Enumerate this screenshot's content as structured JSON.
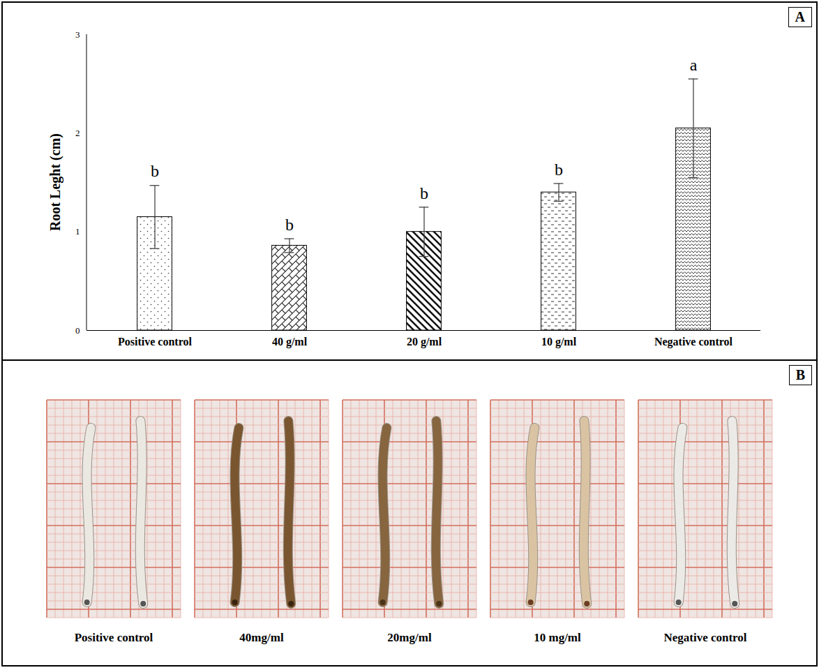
{
  "chart_data": {
    "type": "bar",
    "panel": "A",
    "y_label": "Root Leght (cm)",
    "categories": [
      "Positive control",
      "40 g/ml",
      "20 g/ml",
      "10 g/ml",
      "Negative control"
    ],
    "values": [
      1.15,
      0.86,
      1.0,
      1.4,
      2.05
    ],
    "errors": [
      0.32,
      0.07,
      0.25,
      0.09,
      0.5
    ],
    "significance_letters": [
      "b",
      "b",
      "b",
      "b",
      "a"
    ],
    "color": "#ffffff",
    "ylim": [
      0,
      3
    ],
    "yticks": [
      0,
      1,
      2,
      3
    ],
    "grid": false
  },
  "photo_panel": {
    "panel": "B",
    "labels": [
      "Positive control",
      "40mg/ml",
      "20mg/ml",
      "10 mg/ml",
      "Negative control"
    ]
  }
}
